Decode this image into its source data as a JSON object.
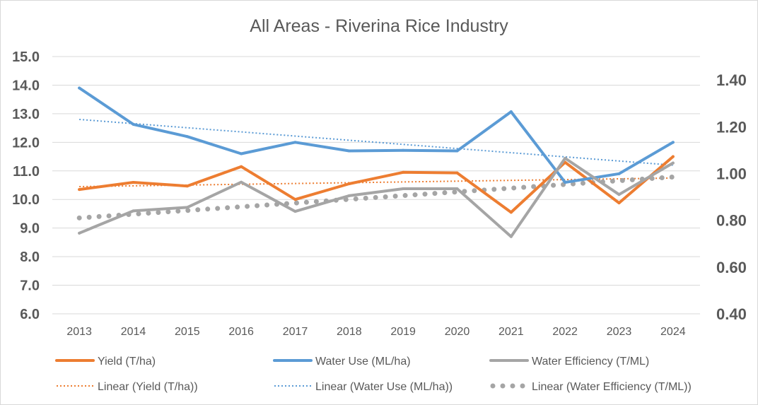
{
  "chart_data": {
    "type": "line",
    "title": "All Areas - Riverina Rice Industry",
    "categories": [
      "2013",
      "2014",
      "2015",
      "2016",
      "2017",
      "2018",
      "2019",
      "2020",
      "2021",
      "2022",
      "2023",
      "2024"
    ],
    "y_left": {
      "min": 6.0,
      "max": 15.0,
      "ticks": [
        "15.0",
        "14.0",
        "13.0",
        "12.0",
        "11.0",
        "10.0",
        "9.0",
        "8.0",
        "7.0",
        "6.0"
      ]
    },
    "y_right": {
      "min": 0.4,
      "max": 1.5,
      "ticks": [
        "1.40",
        "1.20",
        "1.00",
        "0.80",
        "0.60",
        "0.40"
      ]
    },
    "grid": "horizontal",
    "legend_position": "bottom",
    "series": [
      {
        "name": "Yield (T/ha)",
        "axis": "left",
        "color": "#ED7D31",
        "values": [
          10.35,
          10.6,
          10.47,
          11.15,
          10.0,
          10.55,
          10.95,
          10.93,
          9.55,
          11.3,
          9.88,
          11.5
        ]
      },
      {
        "name": "Water Use (ML/ha)",
        "axis": "left",
        "color": "#5B9BD5",
        "values": [
          13.9,
          12.63,
          12.2,
          11.6,
          12.0,
          11.7,
          11.72,
          11.7,
          13.07,
          10.6,
          10.9,
          12.0
        ]
      },
      {
        "name": "Water Efficiency (T/ML)",
        "axis": "right",
        "color": "#A5A5A5",
        "values": [
          0.745,
          0.84,
          0.855,
          0.963,
          0.838,
          0.905,
          0.935,
          0.935,
          0.73,
          1.065,
          0.91,
          1.045
        ]
      }
    ],
    "trendlines": [
      {
        "name": "Linear (Yield (T/ha))",
        "axis": "left",
        "color": "#ED7D31",
        "style": "dotted",
        "start": 10.45,
        "end": 10.75
      },
      {
        "name": "Linear (Water Use (ML/ha))",
        "axis": "left",
        "color": "#5B9BD5",
        "style": "dotted",
        "start": 12.8,
        "end": 11.2
      },
      {
        "name": "Linear (Water Efficiency (T/ML))",
        "axis": "right",
        "color": "#A5A5A5",
        "style": "round-dot",
        "start": 0.81,
        "end": 0.985
      }
    ]
  }
}
